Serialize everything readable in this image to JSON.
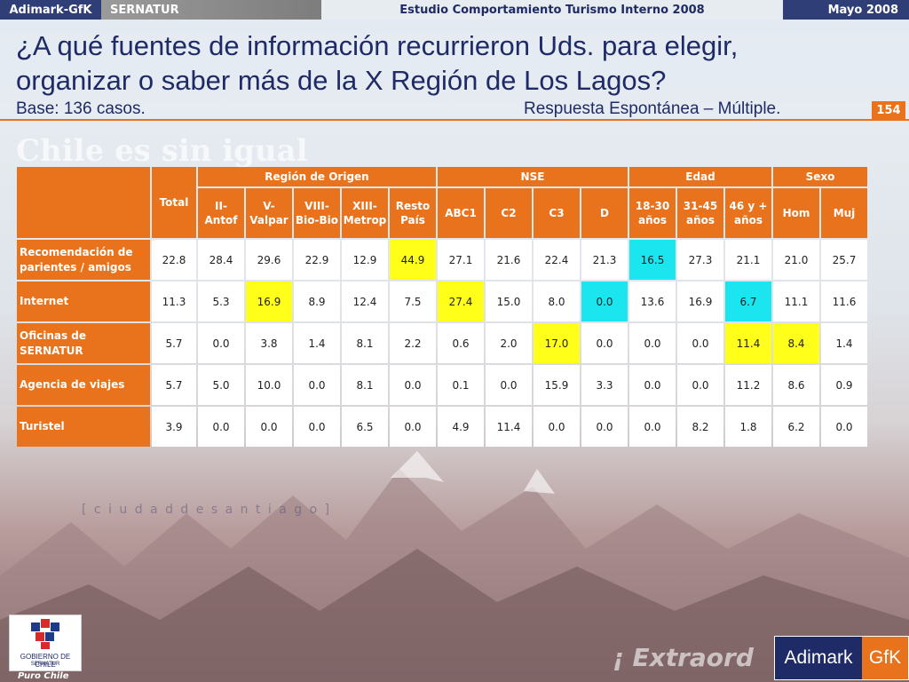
{
  "header": {
    "brand": "Adimark-GfK",
    "client": "SERNATUR",
    "study": "Estudio Comportamiento Turismo Interno 2008",
    "date": "Mayo 2008"
  },
  "title_line1": "¿A qué fuentes de información recurrieron Uds. para elegir,",
  "title_line2": "organizar o saber más de la X Región de Los Lagos?",
  "base": "Base: 136 casos.",
  "response_type": "Respuesta Espontánea – Múltiple.",
  "slide_number": "154",
  "background_text": "Chile es sin igual",
  "background_text2": "[ c i u d a d  d e   s a n t i a g o  ]",
  "background_text3": "¡ Extraord",
  "table": {
    "total_label": "Total",
    "groups": [
      {
        "label": "Región de Origen",
        "span": 5
      },
      {
        "label": "NSE",
        "span": 4
      },
      {
        "label": "Edad",
        "span": 3
      },
      {
        "label": "Sexo",
        "span": 2
      }
    ],
    "sub_columns": [
      [
        "II-",
        "Antof"
      ],
      [
        "V-",
        "Valpar"
      ],
      [
        "VIII-",
        "Bio-Bio"
      ],
      [
        "XIII-",
        "Metrop"
      ],
      [
        "Resto",
        "País"
      ],
      [
        "ABC1"
      ],
      [
        "C2"
      ],
      [
        "C3"
      ],
      [
        "D"
      ],
      [
        "18-30",
        "años"
      ],
      [
        "31-45",
        "años"
      ],
      [
        "46 y +",
        "años"
      ],
      [
        "Hom"
      ],
      [
        "Muj"
      ]
    ],
    "rows": [
      {
        "label": [
          "Recomendación de",
          "parientes / amigos"
        ],
        "total": "22.8",
        "values": [
          "28.4",
          "29.6",
          "22.9",
          "12.9",
          "44.9",
          "27.1",
          "21.6",
          "22.4",
          "21.3",
          "16.5",
          "27.3",
          "21.1",
          "21.0",
          "25.7"
        ],
        "highlights": [
          "",
          "",
          "",
          "",
          "yellow",
          "",
          "",
          "",
          "",
          "cyan",
          "",
          "",
          "",
          ""
        ]
      },
      {
        "label": [
          "Internet"
        ],
        "total": "11.3",
        "values": [
          "5.3",
          "16.9",
          "8.9",
          "12.4",
          "7.5",
          "27.4",
          "15.0",
          "8.0",
          "0.0",
          "13.6",
          "16.9",
          "6.7",
          "11.1",
          "11.6"
        ],
        "highlights": [
          "",
          "yellow",
          "",
          "",
          "",
          "yellow",
          "",
          "",
          "cyan",
          "",
          "",
          "cyan",
          "",
          ""
        ]
      },
      {
        "label": [
          "Oficinas de",
          "SERNATUR"
        ],
        "total": "5.7",
        "values": [
          "0.0",
          "3.8",
          "1.4",
          "8.1",
          "2.2",
          "0.6",
          "2.0",
          "17.0",
          "0.0",
          "0.0",
          "0.0",
          "11.4",
          "8.4",
          "1.4"
        ],
        "highlights": [
          "",
          "",
          "",
          "",
          "",
          "",
          "",
          "yellow",
          "",
          "",
          "",
          "yellow",
          "yellow",
          ""
        ]
      },
      {
        "label": [
          "Agencia de viajes"
        ],
        "total": "5.7",
        "values": [
          "5.0",
          "10.0",
          "0.0",
          "8.1",
          "0.0",
          "0.1",
          "0.0",
          "15.9",
          "3.3",
          "0.0",
          "0.0",
          "11.2",
          "8.6",
          "0.9"
        ],
        "highlights": [
          "",
          "",
          "",
          "",
          "",
          "",
          "",
          "",
          "",
          "",
          "",
          "",
          "",
          ""
        ]
      },
      {
        "label": [
          "Turistel"
        ],
        "total": "3.9",
        "values": [
          "0.0",
          "0.0",
          "0.0",
          "6.5",
          "0.0",
          "4.9",
          "11.4",
          "0.0",
          "0.0",
          "0.0",
          "8.2",
          "1.8",
          "6.2",
          "0.0"
        ],
        "highlights": [
          "",
          "",
          "",
          "",
          "",
          "",
          "",
          "",
          "",
          "",
          "",
          "",
          "",
          ""
        ]
      }
    ]
  },
  "logos": {
    "gobierno_line1": "GOBIERNO DE CHILE",
    "gobierno_line2": "SERNATUR",
    "puro_chile": "Puro Chile",
    "adimark": "Adimark",
    "gfk": "GfK"
  },
  "colors": {
    "orange": "#e8731c",
    "navy": "#1e2b66",
    "highlight_yellow": "#ffff1a",
    "highlight_cyan": "#1be6f0"
  }
}
